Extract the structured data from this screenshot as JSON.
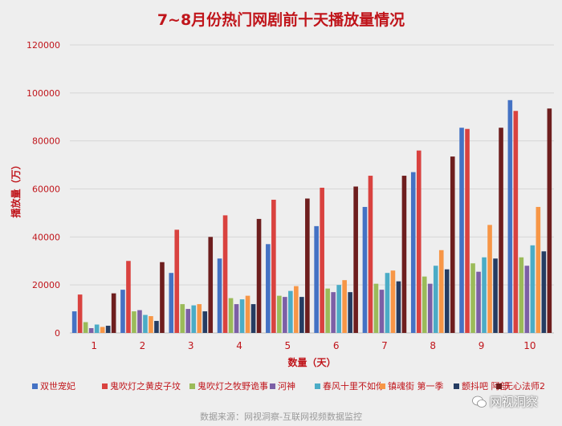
{
  "title": "7~8月份热门网剧前十天播放量情况",
  "source": "数据来源：网视洞察-互联网视频数据监控",
  "watermark": "网视洞察",
  "chart_data": {
    "type": "bar",
    "title": "7~8月份热门网剧前十天播放量情况",
    "xlabel": "数量（天）",
    "ylabel": "播放量（万）",
    "ylim": [
      0,
      120000
    ],
    "yticks": [
      "0",
      "20000",
      "40000",
      "60000",
      "80000",
      "100000",
      "120000"
    ],
    "categories": [
      "1",
      "2",
      "3",
      "4",
      "5",
      "6",
      "7",
      "8",
      "9",
      "10"
    ],
    "grid": true,
    "legend_position": "bottom",
    "series": [
      {
        "name": "双世宠妃",
        "color": "#4472c4",
        "values": [
          9000,
          18000,
          25000,
          31000,
          37000,
          44500,
          52500,
          67000,
          85500,
          97000
        ]
      },
      {
        "name": "鬼吹灯之黄皮子坟",
        "color": "#d9423f",
        "values": [
          16000,
          30000,
          43000,
          49000,
          55500,
          60500,
          65500,
          76000,
          85000,
          92500
        ]
      },
      {
        "name": "鬼吹灯之牧野诡事",
        "color": "#9bbb59",
        "values": [
          4500,
          9000,
          12000,
          14500,
          15500,
          18500,
          20500,
          23500,
          29000,
          31500
        ]
      },
      {
        "name": "河神",
        "color": "#7c5fa6",
        "values": [
          2000,
          9500,
          10000,
          12000,
          15000,
          17000,
          18000,
          20500,
          25500,
          28000
        ]
      },
      {
        "name": "春风十里不如你",
        "color": "#4bacc6",
        "values": [
          3500,
          7500,
          11500,
          14000,
          17500,
          20000,
          25000,
          28000,
          31500,
          36500
        ]
      },
      {
        "name": "镇魂街 第一季",
        "color": "#f79646",
        "values": [
          2500,
          7000,
          12000,
          15500,
          19500,
          22000,
          26000,
          34500,
          45000,
          52500
        ]
      },
      {
        "name": "颤抖吧 阿部",
        "color": "#253c62",
        "values": [
          3000,
          5000,
          9000,
          12000,
          15000,
          17000,
          21500,
          26500,
          31000,
          34000
        ]
      },
      {
        "name": "无心法师2",
        "color": "#6e1e1e",
        "values": [
          16500,
          29500,
          40000,
          47500,
          56000,
          61000,
          65500,
          73500,
          85500,
          93500
        ]
      }
    ]
  }
}
